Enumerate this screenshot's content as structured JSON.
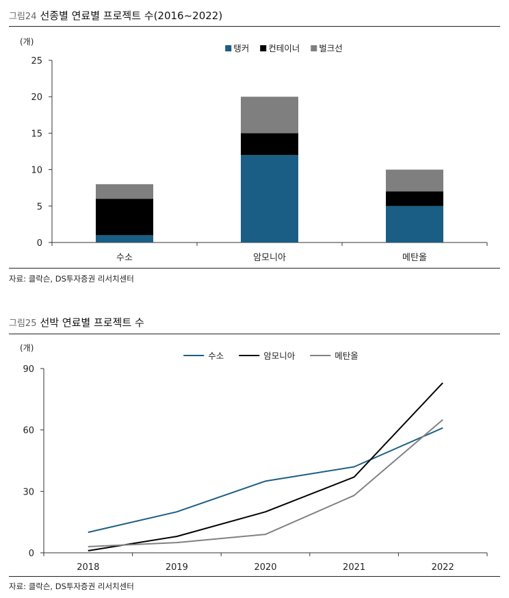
{
  "figures": [
    {
      "number": "그림24",
      "title": "선종별 연료별 프로젝트 수(2016~2022)",
      "source": "자료: 클락슨, DS투자증권 리서치센터"
    },
    {
      "number": "그림25",
      "title": "선박 연료별 프로젝트 수",
      "source": "자료: 클락슨, DS투자증권 리서치센터"
    }
  ],
  "chart_data": [
    {
      "type": "bar",
      "stacked": true,
      "unit_label": "(개)",
      "categories": [
        "수소",
        "암모니아",
        "메탄올"
      ],
      "series": [
        {
          "name": "탱커",
          "color": "#1a5e85",
          "values": [
            1,
            12,
            5
          ]
        },
        {
          "name": "컨테이너",
          "color": "#000000",
          "values": [
            5,
            3,
            2
          ]
        },
        {
          "name": "벌크선",
          "color": "#7f7f7f",
          "values": [
            2,
            5,
            3
          ]
        }
      ],
      "ylim": [
        0,
        25
      ],
      "yticks": [
        0,
        5,
        10,
        15,
        20,
        25
      ],
      "legend": "top-center",
      "grid": false
    },
    {
      "type": "line",
      "unit_label": "(개)",
      "x": [
        "2018",
        "2019",
        "2020",
        "2021",
        "2022"
      ],
      "series": [
        {
          "name": "수소",
          "color": "#1a5e85",
          "values": [
            10,
            20,
            35,
            42,
            61
          ]
        },
        {
          "name": "암모니아",
          "color": "#000000",
          "values": [
            1,
            8,
            20,
            37,
            83
          ]
        },
        {
          "name": "메탄올",
          "color": "#808080",
          "values": [
            3,
            5,
            9,
            28,
            65
          ]
        }
      ],
      "ylim": [
        0,
        90
      ],
      "yticks": [
        0,
        30,
        60,
        90
      ],
      "legend": "top-center",
      "grid": false
    }
  ]
}
